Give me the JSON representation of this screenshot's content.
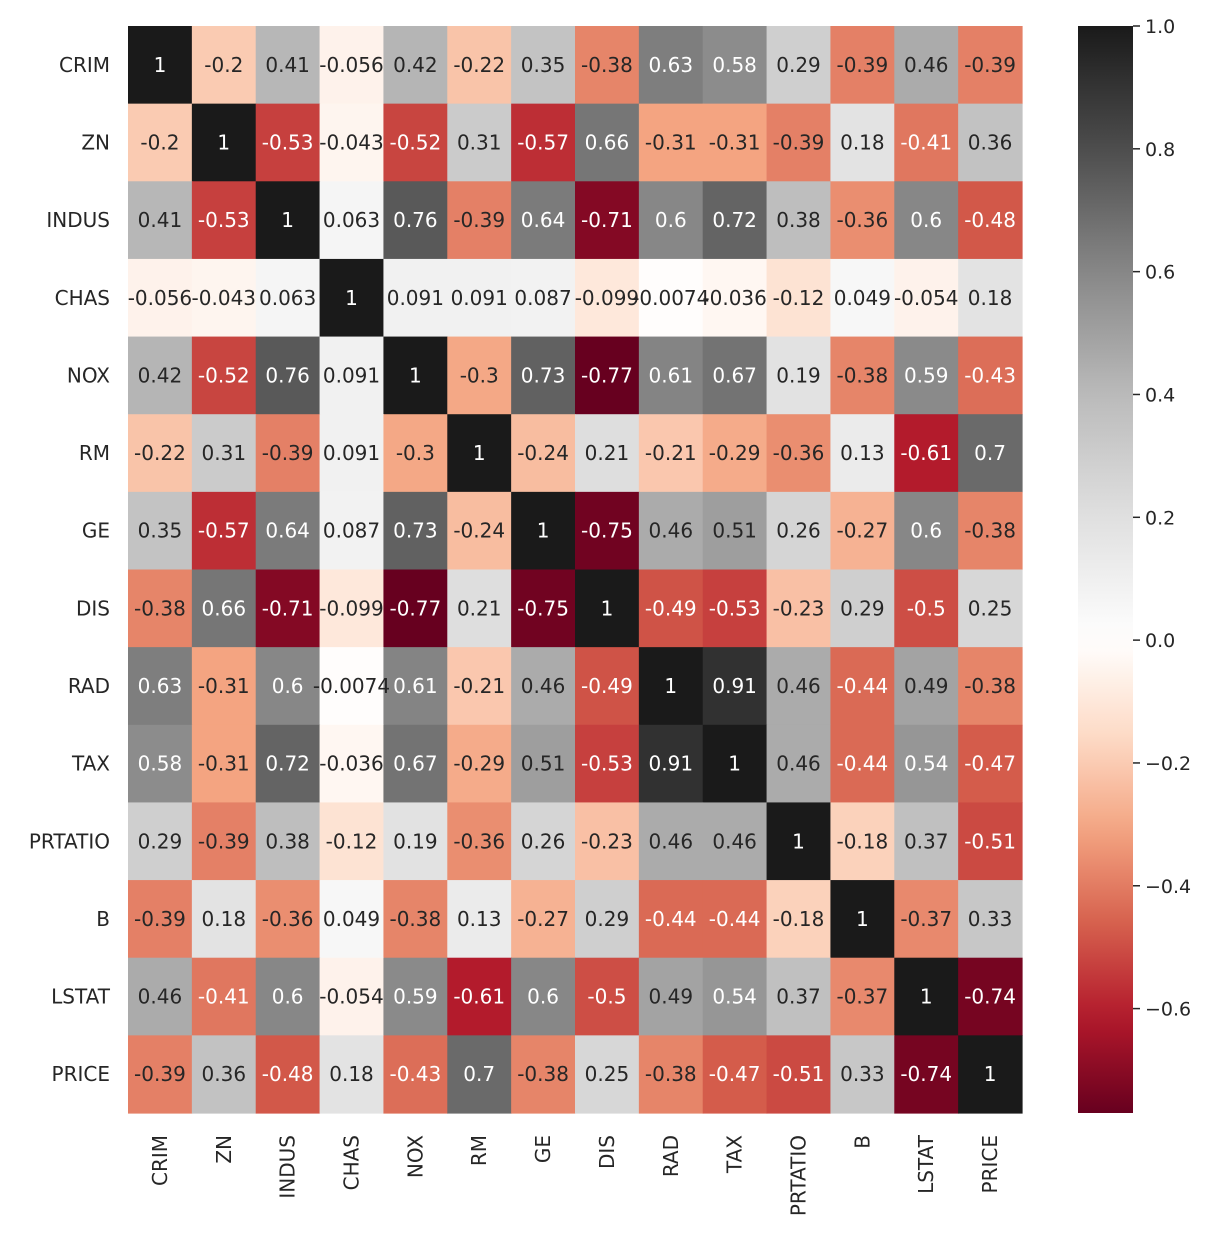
{
  "chart_data": {
    "type": "heatmap",
    "title": "",
    "xlabel": "",
    "ylabel": "",
    "row_labels": [
      "CRIM",
      "ZN",
      "INDUS",
      "CHAS",
      "NOX",
      "RM",
      "GE",
      "DIS",
      "RAD",
      "TAX",
      "PRTATIO",
      "B",
      "LSTAT",
      "PRICE"
    ],
    "col_labels": [
      "CRIM",
      "ZN",
      "INDUS",
      "CHAS",
      "NOX",
      "RM",
      "GE",
      "DIS",
      "RAD",
      "TAX",
      "PRTATIO",
      "B",
      "LSTAT",
      "PRICE"
    ],
    "values": [
      [
        1,
        -0.2,
        0.41,
        -0.056,
        0.42,
        -0.22,
        0.35,
        -0.38,
        0.63,
        0.58,
        0.29,
        -0.39,
        0.46,
        -0.39
      ],
      [
        -0.2,
        1,
        -0.53,
        -0.043,
        -0.52,
        0.31,
        -0.57,
        0.66,
        -0.31,
        -0.31,
        -0.39,
        0.18,
        -0.41,
        0.36
      ],
      [
        0.41,
        -0.53,
        1,
        0.063,
        0.76,
        -0.39,
        0.64,
        -0.71,
        0.6,
        0.72,
        0.38,
        -0.36,
        0.6,
        -0.48
      ],
      [
        -0.056,
        -0.043,
        0.063,
        1,
        0.091,
        0.091,
        0.087,
        -0.099,
        -0.0074,
        -0.036,
        -0.12,
        0.049,
        -0.054,
        0.18
      ],
      [
        0.42,
        -0.52,
        0.76,
        0.091,
        1,
        -0.3,
        0.73,
        -0.77,
        0.61,
        0.67,
        0.19,
        -0.38,
        0.59,
        -0.43
      ],
      [
        -0.22,
        0.31,
        -0.39,
        0.091,
        -0.3,
        1,
        -0.24,
        0.21,
        -0.21,
        -0.29,
        -0.36,
        0.13,
        -0.61,
        0.7
      ],
      [
        0.35,
        -0.57,
        0.64,
        0.087,
        0.73,
        -0.24,
        1,
        -0.75,
        0.46,
        0.51,
        0.26,
        -0.27,
        0.6,
        -0.38
      ],
      [
        -0.38,
        0.66,
        -0.71,
        -0.099,
        -0.77,
        0.21,
        -0.75,
        1,
        -0.49,
        -0.53,
        -0.23,
        0.29,
        -0.5,
        0.25
      ],
      [
        0.63,
        -0.31,
        0.6,
        -0.0074,
        0.61,
        -0.21,
        0.46,
        -0.49,
        1,
        0.91,
        0.46,
        -0.44,
        0.49,
        -0.38
      ],
      [
        0.58,
        -0.31,
        0.72,
        -0.036,
        0.67,
        -0.29,
        0.51,
        -0.53,
        0.91,
        1,
        0.46,
        -0.44,
        0.54,
        -0.47
      ],
      [
        0.29,
        -0.39,
        0.38,
        -0.12,
        0.19,
        -0.36,
        0.26,
        -0.23,
        0.46,
        0.46,
        1,
        -0.18,
        0.37,
        -0.51
      ],
      [
        -0.39,
        0.18,
        -0.36,
        0.049,
        -0.38,
        0.13,
        -0.27,
        0.29,
        -0.44,
        -0.44,
        -0.18,
        1,
        -0.37,
        0.33
      ],
      [
        0.46,
        -0.41,
        0.6,
        -0.054,
        0.59,
        -0.61,
        0.6,
        -0.5,
        0.49,
        0.54,
        0.37,
        -0.37,
        1,
        -0.74
      ],
      [
        -0.39,
        0.36,
        -0.48,
        0.18,
        -0.43,
        0.7,
        -0.38,
        0.25,
        -0.38,
        -0.47,
        -0.51,
        0.33,
        -0.74,
        1
      ]
    ],
    "annotations": true,
    "colormap": "RdGy",
    "vmin": -0.77,
    "vmax": 1.0,
    "colorbar": {
      "ticks": [
        1.0,
        0.8,
        0.6,
        0.4,
        0.2,
        0.0,
        -0.2,
        -0.4,
        -0.6
      ],
      "tick_labels": [
        "1.0",
        "0.8",
        "0.6",
        "0.4",
        "0.2",
        "0.0",
        "−0.2",
        "−0.4",
        "−0.6"
      ]
    }
  }
}
